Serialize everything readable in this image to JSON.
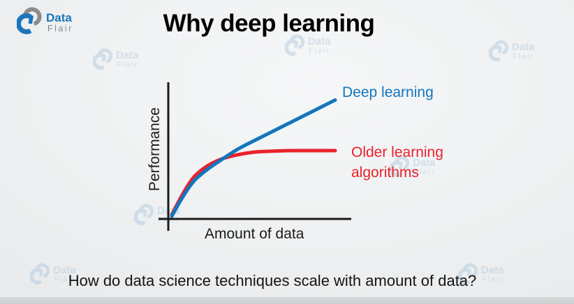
{
  "page": {
    "question": "How do data science techniques scale with amount of data?"
  },
  "logo": {
    "brand_top": "Data",
    "brand_bottom": "Flair"
  },
  "watermark": {
    "brand_top": "Data",
    "brand_bottom": "Flair"
  },
  "colors": {
    "deep_learning_blue": "#1276bd",
    "older_algorithms_red": "#e9222b",
    "axis_black": "#1a1a1a",
    "logo_blue": "#1b75bb",
    "logo_gray": "#8a8c8e",
    "watermark_blue": "#b3cbdf"
  },
  "chart_data": {
    "type": "line",
    "title": "Why deep learning",
    "xlabel": "Amount of data",
    "ylabel": "Performance",
    "xlim": [
      0,
      100
    ],
    "ylim": [
      0,
      100
    ],
    "grid": false,
    "legend_position": "inline labels right of line ends",
    "x": [
      0,
      10,
      20,
      30,
      40,
      50,
      60,
      70,
      80,
      90,
      100
    ],
    "series": [
      {
        "name": "Deep learning",
        "color": "#1276bd",
        "label_lines": [
          "Deep learning"
        ],
        "values": [
          1,
          23,
          34,
          42,
          50,
          56,
          62,
          68,
          74,
          80,
          86
        ]
      },
      {
        "name": "Older learning algorithms",
        "color": "#e9222b",
        "label_lines": [
          "Older learning",
          "algorithms"
        ],
        "values": [
          2,
          26,
          37,
          43,
          46,
          48,
          48.5,
          49,
          49,
          49,
          49
        ]
      }
    ]
  }
}
